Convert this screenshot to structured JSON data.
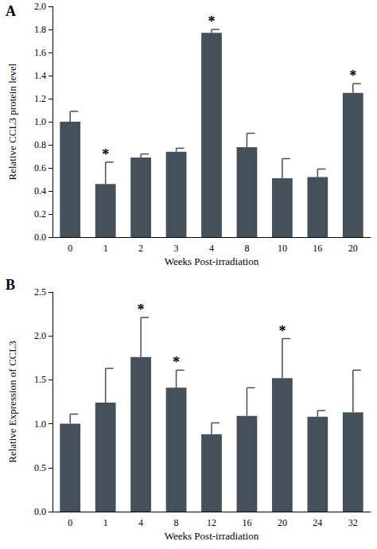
{
  "chart_data": [
    {
      "type": "bar",
      "title": "A",
      "x_label": "Weeks Post-irradiation",
      "y_label": "Relative CCL3 protein level",
      "categories": [
        "0",
        "1",
        "2",
        "3",
        "4",
        "8",
        "10",
        "16",
        "20"
      ],
      "values": [
        1.0,
        0.46,
        0.69,
        0.74,
        1.77,
        0.78,
        0.51,
        0.52,
        1.25
      ],
      "errors": [
        0.09,
        0.19,
        0.03,
        0.03,
        0.03,
        0.12,
        0.17,
        0.07,
        0.08
      ],
      "annotations": [
        {
          "category": "1",
          "text": "*"
        },
        {
          "category": "4",
          "text": "*"
        },
        {
          "category": "20",
          "text": "*"
        }
      ],
      "color": "#44515b",
      "ylim": [
        0,
        2
      ],
      "yticks": [
        {
          "value": 0,
          "label": "0.0"
        },
        0.2,
        0.4,
        0.6,
        0.8,
        {
          "value": 1,
          "label": "1.0"
        },
        1.2,
        1.4,
        1.6,
        1.8,
        {
          "value": 2,
          "label": "2.0"
        }
      ],
      "grid": false
    },
    {
      "type": "bar",
      "title": "B",
      "x_label": "Weeks Post-irradiation",
      "y_label": "Relative Expression of CCL3",
      "categories": [
        "0",
        "1",
        "4",
        "8",
        "12",
        "16",
        "20",
        "24",
        "32"
      ],
      "values": [
        1.0,
        1.24,
        1.76,
        1.41,
        0.88,
        1.09,
        1.52,
        1.08,
        1.13
      ],
      "errors": [
        0.11,
        0.39,
        0.45,
        0.2,
        0.13,
        0.32,
        0.45,
        0.07,
        0.48
      ],
      "annotations": [
        {
          "category": "4",
          "text": "*"
        },
        {
          "category": "8",
          "text": "*"
        },
        {
          "category": "20",
          "text": "*"
        }
      ],
      "color": "#44515b",
      "ylim": [
        0,
        2.5
      ],
      "yticks": [
        {
          "value": 0,
          "label": "0.0"
        },
        0.5,
        {
          "value": 1,
          "label": "1.0"
        },
        1.5,
        {
          "value": 2,
          "label": "2.0"
        },
        2.5
      ],
      "grid": false
    }
  ]
}
